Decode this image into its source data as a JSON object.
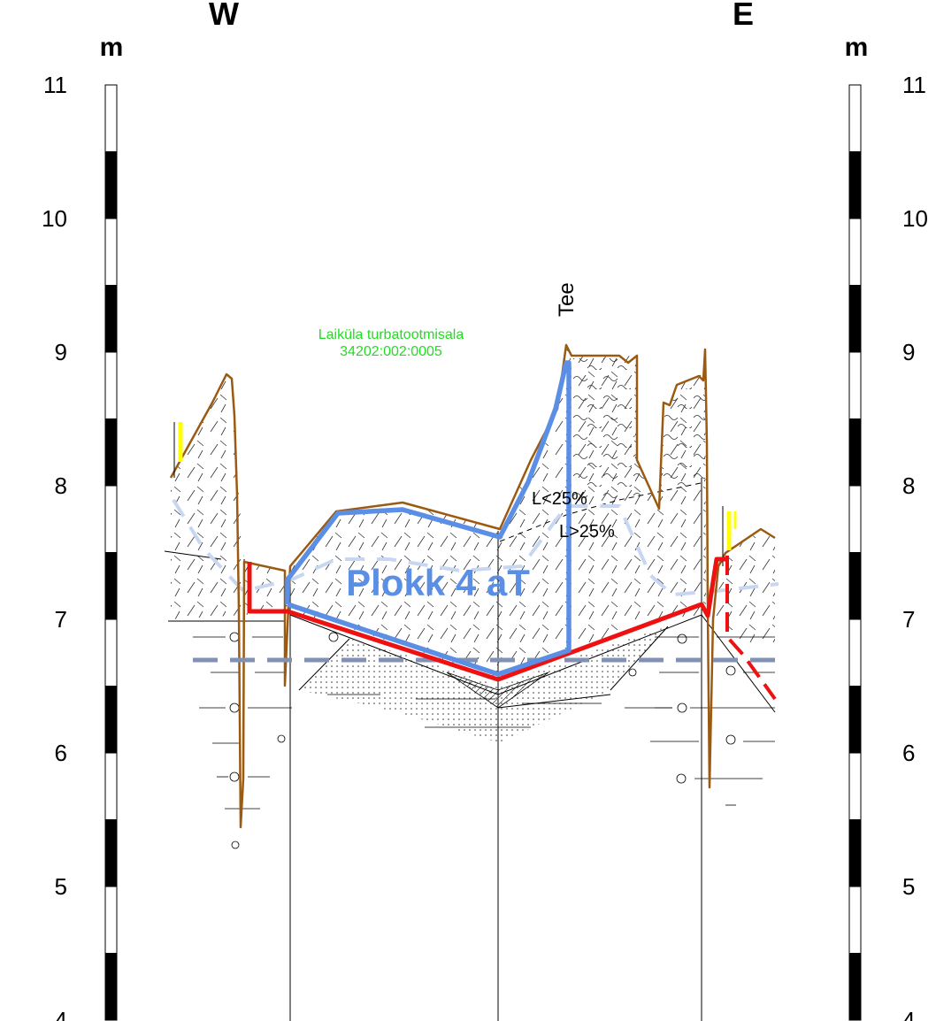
{
  "labels": {
    "west": "W",
    "east": "E",
    "unit_left": "m",
    "unit_right": "m",
    "road": "Tee",
    "parcel_name": "Laiküla turbatootmisala",
    "parcel_id": "34202:002:0005",
    "lime_lt": "L<25%",
    "lime_gt": "L>25%",
    "block": "Plokk 4 aT"
  },
  "scale": {
    "ticks": [
      "11",
      "10",
      "9",
      "8",
      "7",
      "6",
      "5",
      "4"
    ]
  },
  "colors": {
    "ground_line": "#9b5a12",
    "block_outline": "#5b8fe6",
    "block_base": "#ee1111",
    "water_table": "#8091b4",
    "old_groundwater": "#c7d6f1",
    "marker": "#ffff00",
    "parcel_label": "#22dd22"
  }
}
